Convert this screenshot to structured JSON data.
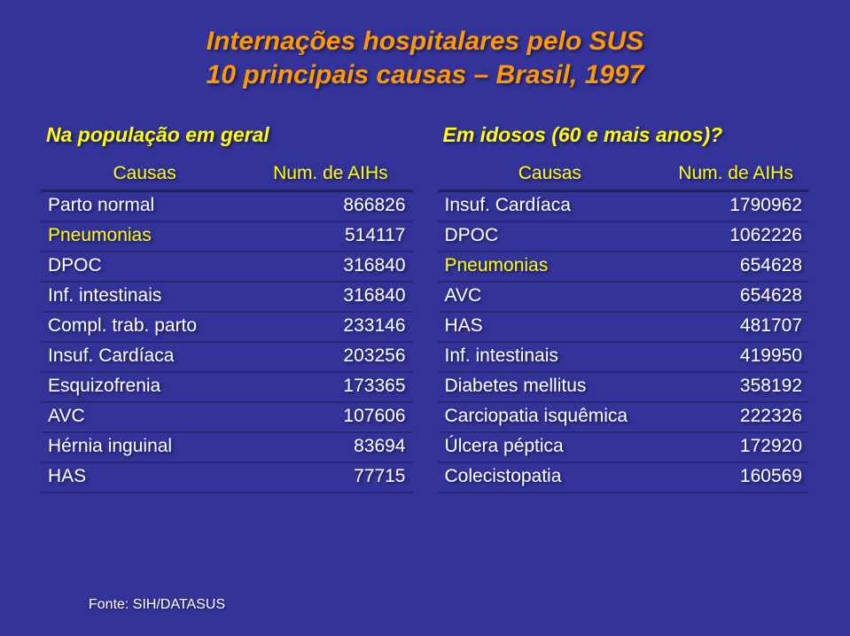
{
  "colors": {
    "background": "#333399",
    "title": "#ff9900",
    "col_title": "#ffff00",
    "header_text": "#ffff00",
    "row_text": "#ffffff",
    "row_highlight": "#ffff00",
    "source": "#ffffff"
  },
  "title": {
    "line1": "Internações hospitalares pelo SUS",
    "line2": "10 principais causas – Brasil, 1997"
  },
  "left": {
    "heading": "Na população em geral",
    "header_cause": "Causas",
    "header_num": "Num. de AIHs",
    "rows": [
      {
        "cause": "Parto normal",
        "num": "866826",
        "hl": false
      },
      {
        "cause": "Pneumonias",
        "num": "514117",
        "hl": true
      },
      {
        "cause": "DPOC",
        "num": "316840",
        "hl": false
      },
      {
        "cause": "Inf. intestinais",
        "num": "316840",
        "hl": false
      },
      {
        "cause": "Compl. trab. parto",
        "num": "233146",
        "hl": false
      },
      {
        "cause": "Insuf. Cardíaca",
        "num": "203256",
        "hl": false
      },
      {
        "cause": "Esquizofrenia",
        "num": "173365",
        "hl": false
      },
      {
        "cause": "AVC",
        "num": "107606",
        "hl": false
      },
      {
        "cause": "Hérnia inguinal",
        "num": "83694",
        "hl": false
      },
      {
        "cause": "HAS",
        "num": "77715",
        "hl": false
      }
    ]
  },
  "right": {
    "heading": "Em idosos (60 e mais anos)?",
    "header_cause": "Causas",
    "header_num": "Num. de AIHs",
    "rows": [
      {
        "cause": "Insuf. Cardíaca",
        "num": "1790962",
        "hl": false
      },
      {
        "cause": "DPOC",
        "num": "1062226",
        "hl": false
      },
      {
        "cause": "Pneumonias",
        "num": "654628",
        "hl": true
      },
      {
        "cause": "AVC",
        "num": "654628",
        "hl": false
      },
      {
        "cause": "HAS",
        "num": "481707",
        "hl": false
      },
      {
        "cause": "Inf. intestinais",
        "num": "419950",
        "hl": false
      },
      {
        "cause": "Diabetes mellitus",
        "num": "358192",
        "hl": false
      },
      {
        "cause": "Carciopatia isquêmica",
        "num": "222326",
        "hl": false
      },
      {
        "cause": "Úlcera péptica",
        "num": "172920",
        "hl": false
      },
      {
        "cause": "Colecistopatia",
        "num": "160569",
        "hl": false
      }
    ]
  },
  "source": "Fonte: SIH/DATASUS"
}
